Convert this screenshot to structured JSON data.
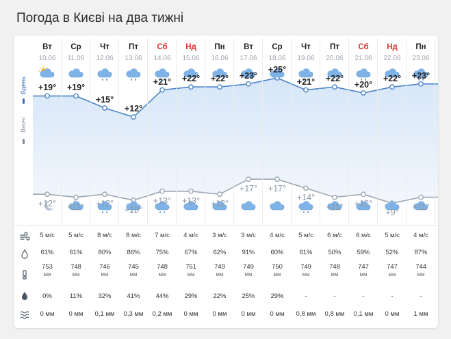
{
  "page_title": "Погода в Києві на два тижні",
  "labels": {
    "day": "Вдень",
    "night": "Вночі"
  },
  "row_icons": [
    "wind-icon",
    "humidity-icon",
    "pressure-icon",
    "precipitation-probability-icon",
    "precipitation-amount-icon"
  ],
  "colors": {
    "day_line": "#4a84c8",
    "night_line": "#9aa6b4",
    "weekend": "#d9302c",
    "day_fill": "#e3edf9"
  },
  "days": [
    {
      "dow": "Вт",
      "date": "10.06",
      "weekend": false,
      "day_icon": "sun-cloud-icon",
      "night_icon": "moon-icon",
      "day_temp": 19,
      "night_temp": 12,
      "day_label": "+19°",
      "night_label": "+12°",
      "wind": "5 м/с",
      "humidity": "61%",
      "pressure": "753",
      "pressure_unit": "мм",
      "prob": "0%",
      "precip": "0 мм"
    },
    {
      "dow": "Ср",
      "date": "11.06",
      "weekend": false,
      "day_icon": "cloud-icon",
      "night_icon": "moon-cloud-icon",
      "day_temp": 19,
      "night_temp": 11,
      "day_label": "+19°",
      "night_label": "+11°",
      "wind": "5 м/с",
      "humidity": "61%",
      "pressure": "748",
      "pressure_unit": "мм",
      "prob": "11%",
      "precip": "0 мм"
    },
    {
      "dow": "Чт",
      "date": "12.06",
      "weekend": false,
      "day_icon": "rain-cloud-icon",
      "night_icon": "rain-cloud-icon",
      "day_temp": 15,
      "night_temp": 12,
      "day_label": "+15°",
      "night_label": "+12°",
      "wind": "8 м/с",
      "humidity": "80%",
      "pressure": "746",
      "pressure_unit": "мм",
      "prob": "32%",
      "precip": "0,1 мм"
    },
    {
      "dow": "Пт",
      "date": "13.06",
      "weekend": false,
      "day_icon": "rain-cloud-icon",
      "night_icon": "moon-rain-cloud-icon",
      "day_temp": 12,
      "night_temp": 10,
      "day_label": "+12°",
      "night_label": "+10°",
      "wind": "8 м/с",
      "humidity": "86%",
      "pressure": "745",
      "pressure_unit": "мм",
      "prob": "41%",
      "precip": "0,3 мм"
    },
    {
      "dow": "Сб",
      "date": "14.06",
      "weekend": true,
      "day_icon": "rain-cloud-icon",
      "night_icon": "rain-cloud-icon",
      "day_temp": 21,
      "night_temp": 13,
      "day_label": "+21°",
      "night_label": "+13°",
      "wind": "7 м/с",
      "humidity": "75%",
      "pressure": "748",
      "pressure_unit": "мм",
      "prob": "44%",
      "precip": "0,2 мм"
    },
    {
      "dow": "Нд",
      "date": "15.06",
      "weekend": true,
      "day_icon": "cloud-icon",
      "night_icon": "moon-cloud-icon",
      "day_temp": 22,
      "night_temp": 13,
      "day_label": "+22°",
      "night_label": "+13°",
      "wind": "4 м/с",
      "humidity": "67%",
      "pressure": "751",
      "pressure_unit": "мм",
      "prob": "29%",
      "precip": "0 мм"
    },
    {
      "dow": "Пн",
      "date": "16.06",
      "weekend": false,
      "day_icon": "cloud-icon",
      "night_icon": "cloud-icon",
      "day_temp": 22,
      "night_temp": 12,
      "day_label": "+22°",
      "night_label": "+12°",
      "wind": "3 м/с",
      "humidity": "62%",
      "pressure": "749",
      "pressure_unit": "мм",
      "prob": "22%",
      "precip": "0 мм"
    },
    {
      "dow": "Вт",
      "date": "17.06",
      "weekend": false,
      "day_icon": "cloud-icon",
      "night_icon": "cloud-icon",
      "day_temp": 23,
      "night_temp": 17,
      "day_label": "+23°",
      "night_label": "+17°",
      "wind": "3 м/с",
      "humidity": "91%",
      "pressure": "749",
      "pressure_unit": "мм",
      "prob": "25%",
      "precip": "0 мм"
    },
    {
      "dow": "Ср",
      "date": "18.06",
      "weekend": false,
      "day_icon": "cloud-icon",
      "night_icon": "cloud-icon",
      "day_temp": 25,
      "night_temp": 17,
      "day_label": "+25°",
      "night_label": "+17°",
      "wind": "4 м/с",
      "humidity": "60%",
      "pressure": "750",
      "pressure_unit": "мм",
      "prob": "29%",
      "precip": "0 мм"
    },
    {
      "dow": "Чт",
      "date": "19.06",
      "weekend": false,
      "day_icon": "rain-cloud-icon",
      "night_icon": "rain-cloud-icon",
      "day_temp": 21,
      "night_temp": 14,
      "day_label": "+21°",
      "night_label": "+14°",
      "wind": "5 м/с",
      "humidity": "61%",
      "pressure": "749",
      "pressure_unit": "мм",
      "prob": "-",
      "precip": "0,8 мм"
    },
    {
      "dow": "Пт",
      "date": "20.06",
      "weekend": false,
      "day_icon": "rain-cloud-icon",
      "night_icon": "cloud-icon",
      "day_temp": 22,
      "night_temp": 11,
      "day_label": "+22°",
      "night_label": "+11°",
      "wind": "6 м/с",
      "humidity": "50%",
      "pressure": "748",
      "pressure_unit": "мм",
      "prob": "-",
      "precip": "0,8 мм"
    },
    {
      "dow": "Сб",
      "date": "21.06",
      "weekend": true,
      "day_icon": "rain-cloud-icon",
      "night_icon": "cloud-icon",
      "day_temp": 20,
      "night_temp": 12,
      "day_label": "+20°",
      "night_label": "+12°",
      "wind": "6 м/с",
      "humidity": "59%",
      "pressure": "747",
      "pressure_unit": "мм",
      "prob": "-",
      "precip": "0,1 мм"
    },
    {
      "dow": "Нд",
      "date": "22.06",
      "weekend": true,
      "day_icon": "cloud-icon",
      "night_icon": "moon-cloud-icon",
      "day_temp": 22,
      "night_temp": 9,
      "day_label": "+22°",
      "night_label": "+9°",
      "wind": "5 м/с",
      "humidity": "52%",
      "pressure": "747",
      "pressure_unit": "мм",
      "prob": "-",
      "precip": "0 мм"
    },
    {
      "dow": "Пн",
      "date": "23.06",
      "weekend": false,
      "day_icon": "rain-cloud-icon",
      "night_icon": "cloud-icon",
      "day_temp": 23,
      "night_temp": 11,
      "day_label": "+23°",
      "night_label": "+11°",
      "wind": "4 м/с",
      "humidity": "87%",
      "pressure": "744",
      "pressure_unit": "мм",
      "prob": "-",
      "precip": "1 мм"
    }
  ]
}
